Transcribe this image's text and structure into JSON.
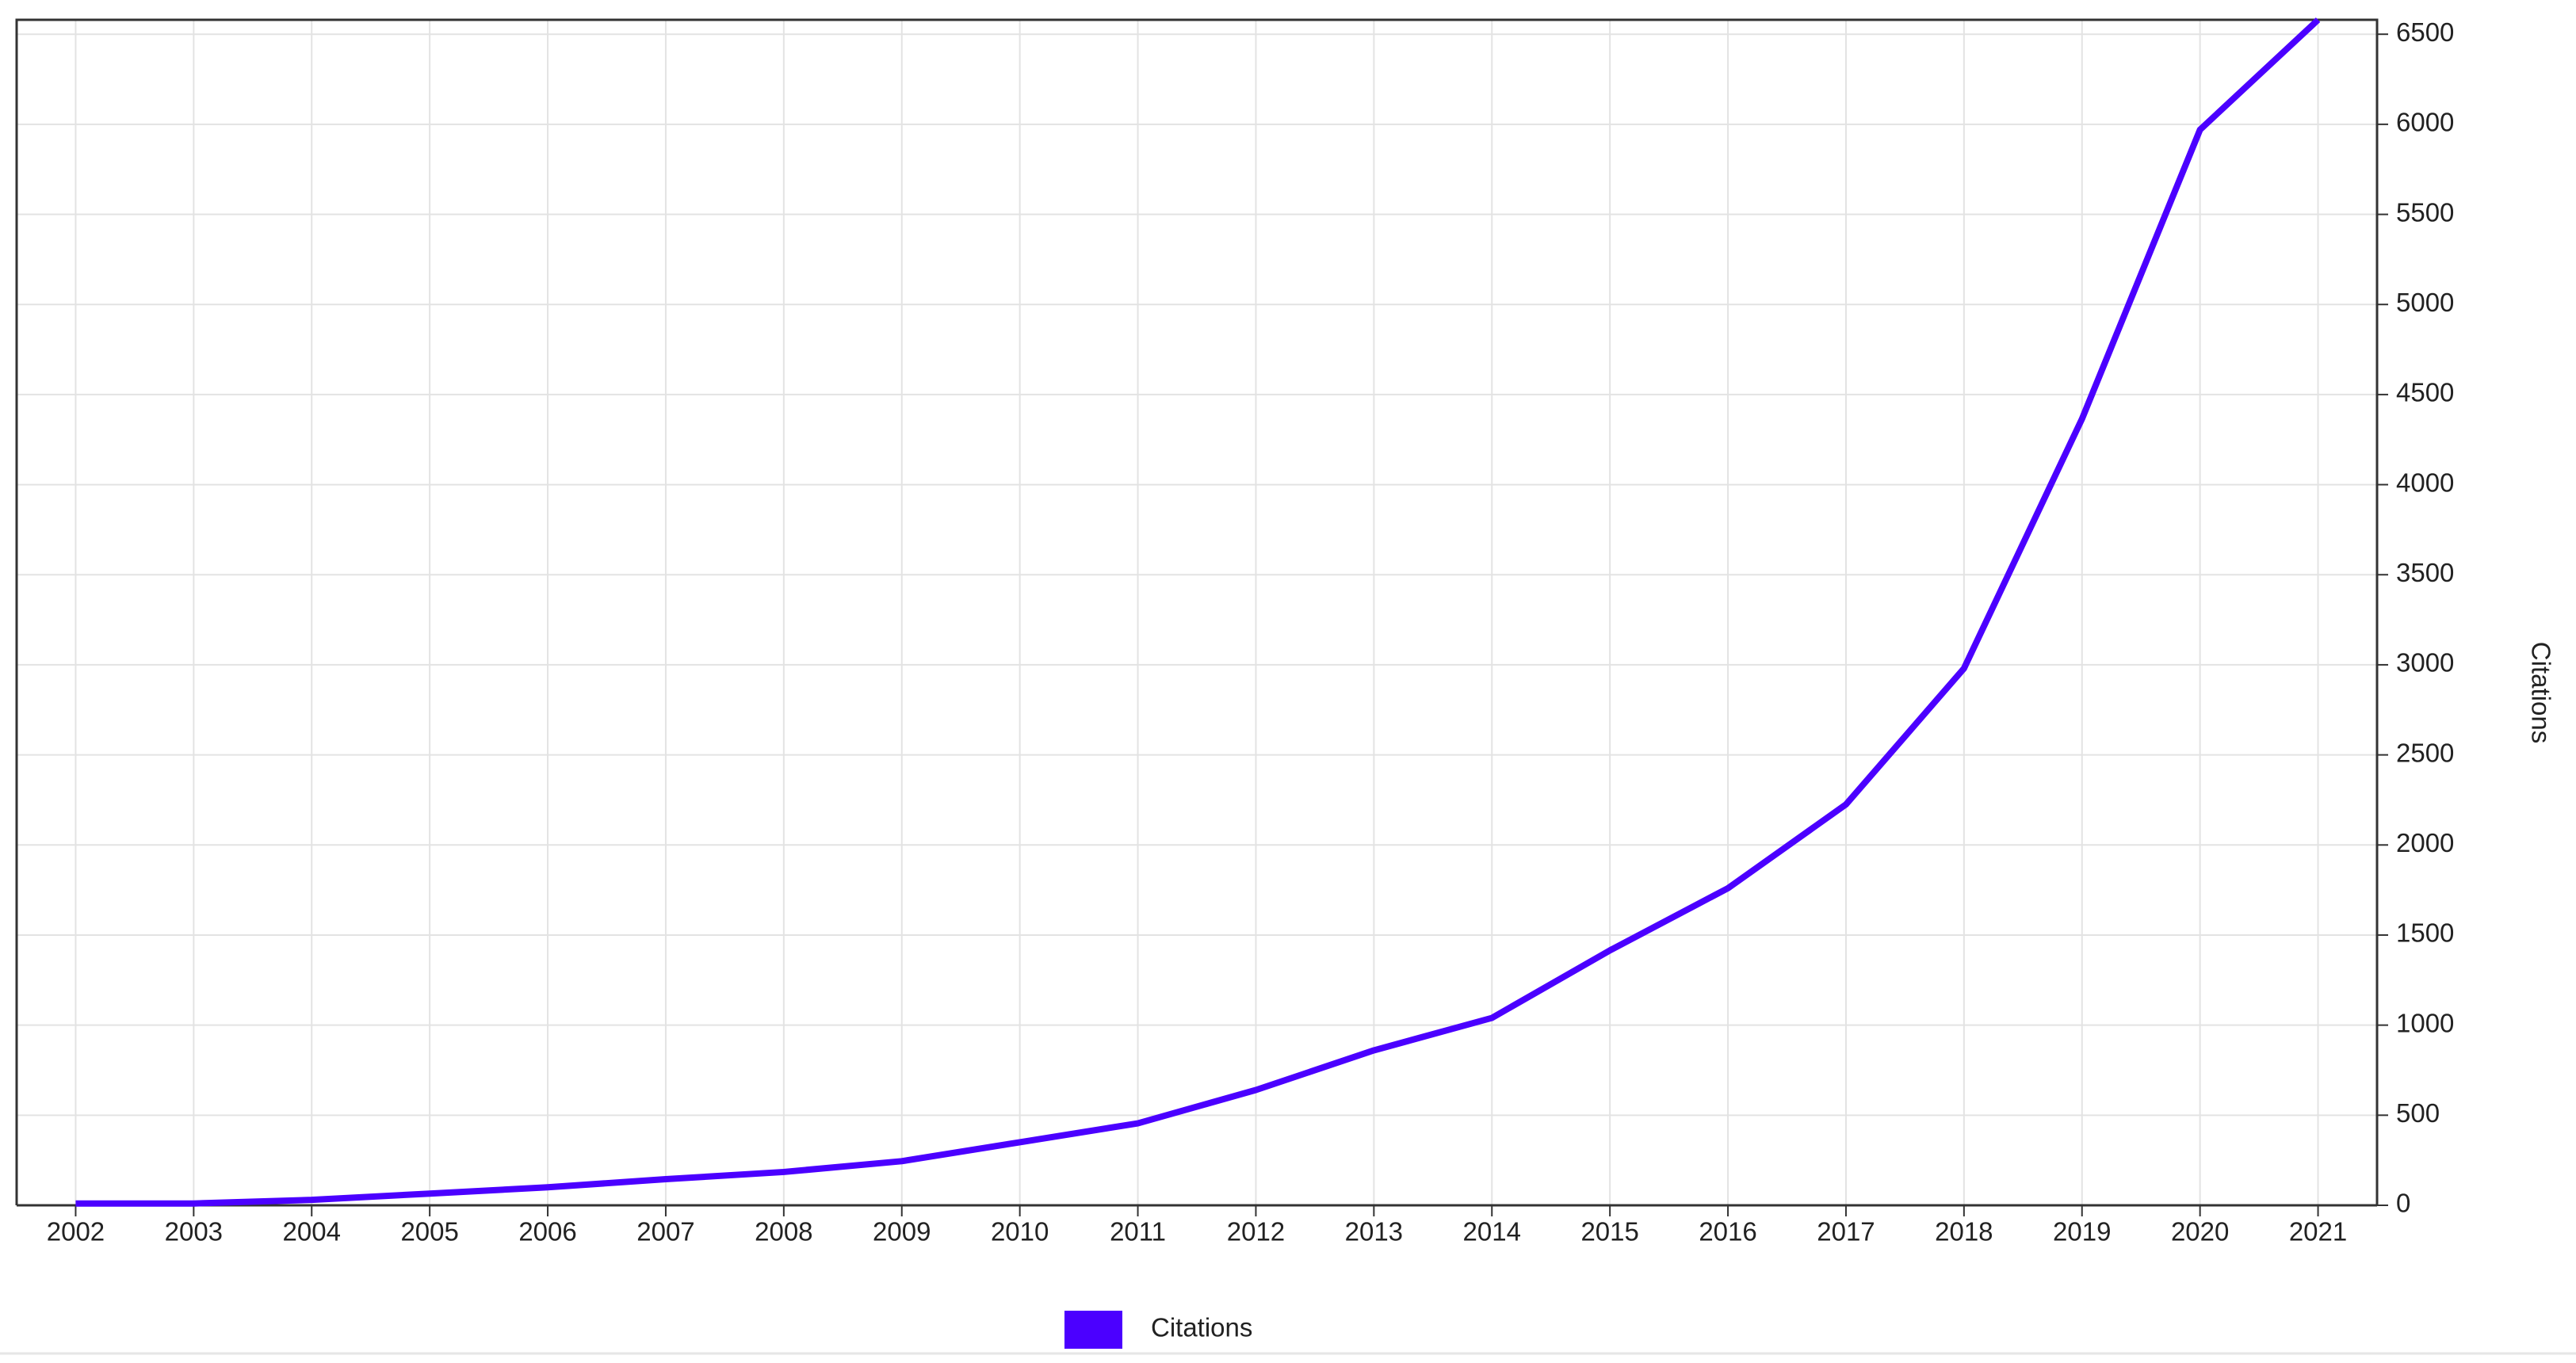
{
  "chart_data": {
    "type": "line",
    "x": [
      2002,
      2003,
      2004,
      2005,
      2006,
      2007,
      2008,
      2009,
      2010,
      2011,
      2012,
      2013,
      2014,
      2015,
      2016,
      2017,
      2018,
      2019,
      2020,
      2021
    ],
    "series": [
      {
        "name": "Citations",
        "color": "#4b00ff",
        "values": [
          10,
          10,
          30,
          65,
          100,
          145,
          185,
          245,
          350,
          455,
          640,
          860,
          1040,
          1415,
          1760,
          2225,
          2980,
          4365,
          5970,
          6580
        ]
      }
    ],
    "xlim": [
      2001.5,
      2021.5
    ],
    "xticks": [
      2002,
      2003,
      2004,
      2005,
      2006,
      2007,
      2008,
      2009,
      2010,
      2011,
      2012,
      2013,
      2014,
      2015,
      2016,
      2017,
      2018,
      2019,
      2020,
      2021
    ],
    "ylim": [
      0,
      6580
    ],
    "yticks": [
      0,
      500,
      1000,
      1500,
      2000,
      2500,
      3000,
      3500,
      4000,
      4500,
      5000,
      5500,
      6000,
      6500
    ],
    "y_axis_label": "Citations",
    "y_axis_side": "right",
    "grid": true,
    "legend": "bottom"
  }
}
